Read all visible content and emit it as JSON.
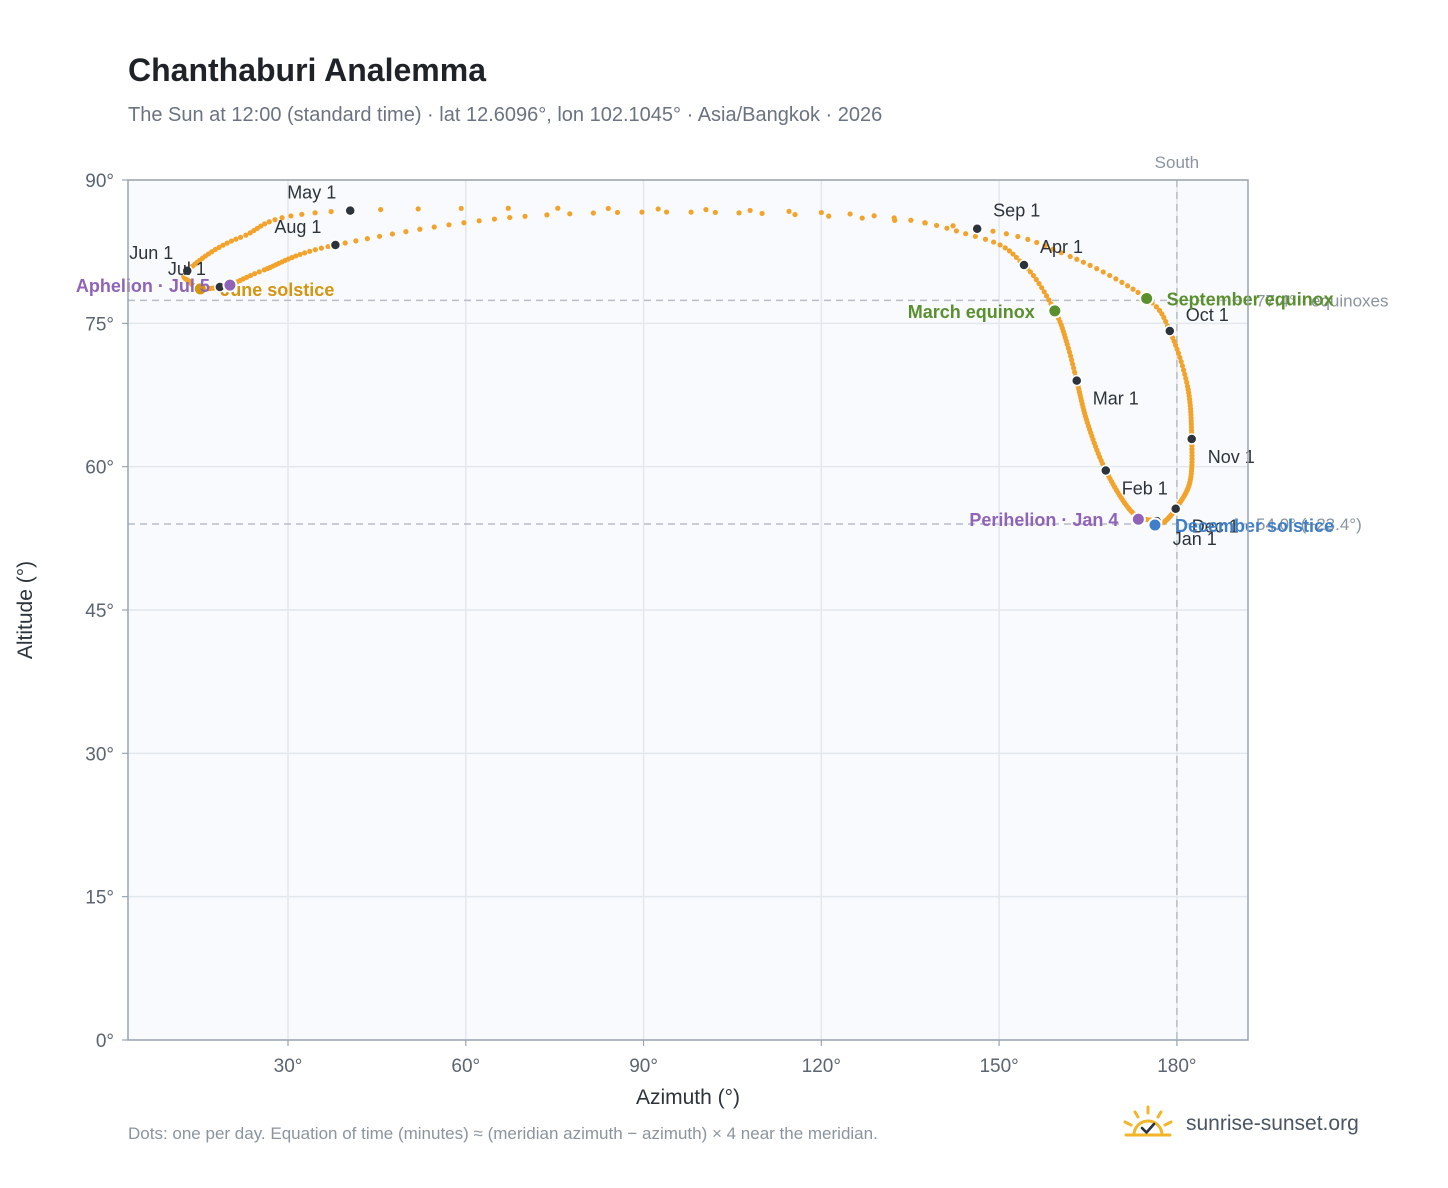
{
  "title": "Chanthaburi Analemma",
  "subtitle": "The Sun at 12:00 (standard time) · lat 12.6096°, lon 102.1045° · Asia/Bangkok · 2026",
  "footnote": "Dots: one per day. Equation of time (minutes) ≈ (meridian azimuth − azimuth) × 4 near the meridian.",
  "brand": {
    "text": "sunrise-sunset.org",
    "icon": "sun-logo-icon"
  },
  "colors": {
    "path": "#f2a32b",
    "month_dot": "#2d333b",
    "equinox": "#5a8f2e",
    "december_solstice": "#3f7fc9",
    "june_solstice": "#d4950f",
    "apsides": "#8f63b8",
    "plot_bg": "#f8fafd",
    "grid": "#e3e8ee",
    "reference_line": "#b8bec6"
  },
  "chart_data": {
    "type": "scatter",
    "xlabel": "Azimuth (°)",
    "ylabel": "Altitude (°)",
    "xlim": [
      3,
      192
    ],
    "ylim": [
      0,
      90
    ],
    "xticks": [
      30,
      60,
      90,
      120,
      150,
      180
    ],
    "yticks": [
      0,
      15,
      30,
      45,
      60,
      75,
      90
    ],
    "xtick_labels": [
      "30°",
      "60°",
      "90°",
      "120°",
      "150°",
      "180°"
    ],
    "ytick_labels": [
      "0°",
      "15°",
      "30°",
      "45°",
      "60°",
      "75°",
      "90°"
    ],
    "grid": true,
    "meridian": {
      "azimuth": 180,
      "label": "South"
    },
    "reference_lines": [
      {
        "altitude": 77.4,
        "label": "77.4° · equinoxes"
      },
      {
        "altitude": 54.0,
        "label": "54.0° (−23.4°)"
      }
    ],
    "daily_path": [
      {
        "date": "Jan 1",
        "az": 176.6,
        "alt": 54.3
      },
      {
        "date": "Jan 15",
        "az": 172.5,
        "alt": 55.2
      },
      {
        "date": "Feb 1",
        "az": 168.0,
        "alt": 59.6
      },
      {
        "date": "Feb 15",
        "az": 164.9,
        "alt": 64.6
      },
      {
        "date": "Mar 1",
        "az": 163.1,
        "alt": 69.0
      },
      {
        "date": "Mar 10",
        "az": 161.5,
        "alt": 72.8
      },
      {
        "date": "Mar 20",
        "az": 159.4,
        "alt": 76.3
      },
      {
        "date": "Apr 1",
        "az": 154.2,
        "alt": 81.1
      },
      {
        "date": "Apr 10",
        "az": 146.0,
        "alt": 84.1
      },
      {
        "date": "Apr 20",
        "az": 120.0,
        "alt": 86.6
      },
      {
        "date": "May 1",
        "az": 40.5,
        "alt": 86.8
      },
      {
        "date": "May 15",
        "az": 22.0,
        "alt": 84.0
      },
      {
        "date": "Jun 1",
        "az": 13.0,
        "alt": 80.5
      },
      {
        "date": "Jun 10",
        "az": 13.5,
        "alt": 79.3
      },
      {
        "date": "Jun 21",
        "az": 15.2,
        "alt": 78.6
      },
      {
        "date": "Jul 1",
        "az": 18.5,
        "alt": 78.8
      },
      {
        "date": "Jul 5",
        "az": 20.2,
        "alt": 79.0
      },
      {
        "date": "Jul 15",
        "az": 26.0,
        "alt": 80.6
      },
      {
        "date": "Aug 1",
        "az": 38.0,
        "alt": 83.2
      },
      {
        "date": "Aug 15",
        "az": 70.0,
        "alt": 86.2
      },
      {
        "date": "Aug 25",
        "az": 110.0,
        "alt": 86.5
      },
      {
        "date": "Sep 1",
        "az": 146.3,
        "alt": 84.9
      },
      {
        "date": "Sep 10",
        "az": 162.0,
        "alt": 82.0
      },
      {
        "date": "Sep 23",
        "az": 174.9,
        "alt": 77.6
      },
      {
        "date": "Oct 1",
        "az": 178.8,
        "alt": 74.2
      },
      {
        "date": "Oct 15",
        "az": 181.8,
        "alt": 68.4
      },
      {
        "date": "Nov 1",
        "az": 182.5,
        "alt": 62.9
      },
      {
        "date": "Nov 15",
        "az": 182.2,
        "alt": 58.4
      },
      {
        "date": "Dec 1",
        "az": 179.8,
        "alt": 55.6
      },
      {
        "date": "Dec 15",
        "az": 177.8,
        "alt": 54.2
      },
      {
        "date": "Dec 31",
        "az": 176.6,
        "alt": 54.3
      }
    ],
    "month_markers": [
      {
        "label": "Jan 1",
        "az": 176.6,
        "alt": 54.3,
        "anchor": "below-right"
      },
      {
        "label": "Feb 1",
        "az": 168.0,
        "alt": 59.6,
        "anchor": "below-right"
      },
      {
        "label": "Mar 1",
        "az": 163.1,
        "alt": 69.0,
        "anchor": "below-right"
      },
      {
        "label": "Apr 1",
        "az": 154.2,
        "alt": 81.1,
        "anchor": "above-right"
      },
      {
        "label": "May 1",
        "az": 40.5,
        "alt": 86.8,
        "anchor": "above-left"
      },
      {
        "label": "Jun 1",
        "az": 13.0,
        "alt": 80.5,
        "anchor": "above-left"
      },
      {
        "label": "Jul 1",
        "az": 18.5,
        "alt": 78.8,
        "anchor": "above-left"
      },
      {
        "label": "Aug 1",
        "az": 38.0,
        "alt": 83.2,
        "anchor": "above-left"
      },
      {
        "label": "Sep 1",
        "az": 146.3,
        "alt": 84.9,
        "anchor": "above-right"
      },
      {
        "label": "Oct 1",
        "az": 178.8,
        "alt": 74.2,
        "anchor": "right"
      },
      {
        "label": "Nov 1",
        "az": 182.5,
        "alt": 62.9,
        "anchor": "below-right"
      },
      {
        "label": "Dec 1",
        "az": 179.8,
        "alt": 55.6,
        "anchor": "below-right"
      }
    ],
    "events": [
      {
        "label": "March equinox",
        "az": 159.4,
        "alt": 76.3,
        "color_key": "equinox",
        "anchor": "left"
      },
      {
        "label": "September equinox",
        "az": 174.9,
        "alt": 77.6,
        "color_key": "equinox",
        "anchor": "right"
      },
      {
        "label": "June solstice",
        "az": 15.2,
        "alt": 78.6,
        "color_key": "june_solstice",
        "anchor": "right"
      },
      {
        "label": "December solstice",
        "az": 176.3,
        "alt": 53.9,
        "color_key": "december_solstice",
        "anchor": "right"
      },
      {
        "label": "Aphelion · Jul 5",
        "az": 20.2,
        "alt": 79.0,
        "color_key": "apsides",
        "anchor": "left"
      },
      {
        "label": "Perihelion · Jan 4",
        "az": 173.5,
        "alt": 54.5,
        "color_key": "apsides",
        "anchor": "left"
      }
    ]
  }
}
